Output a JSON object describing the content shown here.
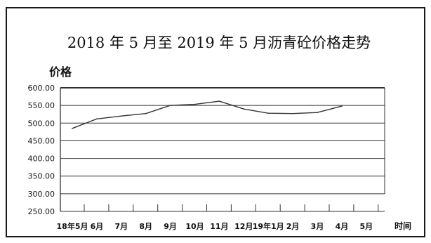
{
  "chart_data": {
    "type": "line",
    "title": "2018 年 5 月至 2019 年 5 月沥青砼价格走势",
    "ylabel": "价格",
    "xlabel": "时间",
    "ylim": [
      250,
      600
    ],
    "yticks": [
      "600.00",
      "550.00",
      "500.00",
      "450.00",
      "400.00",
      "350.00",
      "300.00",
      "250.00"
    ],
    "ytick_values": [
      600,
      550,
      500,
      450,
      400,
      350,
      300,
      250
    ],
    "categories": [
      "18年5月",
      "6月",
      "7月",
      "8月",
      "9月",
      "10月",
      "11月",
      "12月",
      "19年1月",
      "2月",
      "3月",
      "4月",
      "5月"
    ],
    "series": [
      {
        "values": [
          485,
          512,
          520,
          527,
          550,
          553,
          562,
          540,
          528,
          527,
          530,
          548,
          null
        ]
      }
    ],
    "grid": true,
    "line_color": "#333333"
  }
}
